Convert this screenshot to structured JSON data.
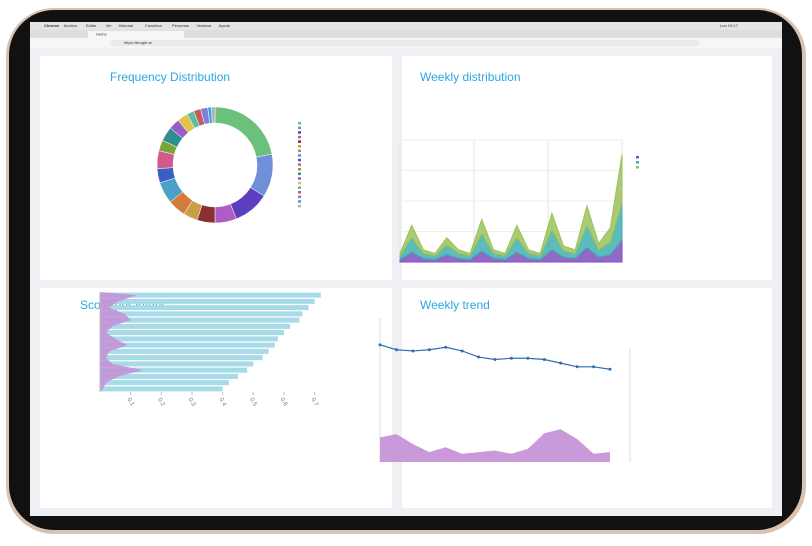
{
  "browser": {
    "menu": [
      "Chrome",
      "Archivo",
      "Editar",
      "Ver",
      "Historial",
      "Favoritos",
      "Personas",
      "Ventana",
      "Ayuda"
    ],
    "clock": "Lun 19:17",
    "tab": "Home",
    "url": "https://brught.ai"
  },
  "chart_data": [
    {
      "type": "pie",
      "title": "Frequency Distribution",
      "values": [
        22,
        12,
        10,
        6,
        5,
        4,
        5,
        6,
        4,
        5,
        3,
        4,
        3,
        3,
        2,
        2,
        2,
        1,
        1
      ],
      "colors": [
        "#6cc17a",
        "#6f8fd8",
        "#5b3fbf",
        "#b05cc7",
        "#8b2f2f",
        "#c9a04a",
        "#d47a3a",
        "#4aa0c8",
        "#3b5fc0",
        "#d05b8c",
        "#7aa33a",
        "#2f8f8f",
        "#9a5cc7",
        "#e0c34a",
        "#5bbf9f",
        "#c75b5b",
        "#7f7fd8",
        "#3fa0e0",
        "#b0b0b0"
      ]
    },
    {
      "type": "area",
      "title": "Weekly distribution",
      "ylim": [
        0,
        100
      ],
      "series": [
        {
          "color": "#7f4fbf",
          "values": [
            2,
            8,
            3,
            2,
            6,
            3,
            2,
            9,
            3,
            2,
            8,
            3,
            2,
            10,
            4,
            3,
            12,
            4,
            6,
            18
          ]
        },
        {
          "color": "#3fb0b0",
          "values": [
            3,
            12,
            4,
            3,
            8,
            4,
            3,
            14,
            4,
            3,
            12,
            4,
            3,
            16,
            5,
            4,
            18,
            6,
            10,
            30
          ]
        },
        {
          "color": "#9bc25a",
          "values": [
            2,
            10,
            3,
            2,
            6,
            3,
            2,
            12,
            3,
            2,
            10,
            3,
            2,
            14,
            4,
            3,
            16,
            5,
            12,
            40
          ]
        }
      ]
    },
    {
      "type": "bar",
      "title": "Score per intent",
      "xlim": [
        0,
        0.75
      ],
      "xticks": [
        0.1,
        0.2,
        0.3,
        0.4,
        0.5,
        0.6,
        0.7
      ],
      "series": [
        {
          "color": "#a8dbe8",
          "values": [
            0.72,
            0.7,
            0.68,
            0.66,
            0.65,
            0.62,
            0.6,
            0.58,
            0.57,
            0.55,
            0.53,
            0.5,
            0.48,
            0.45,
            0.42,
            0.4
          ]
        },
        {
          "color": "#c38ed6",
          "values": [
            0.12,
            0.06,
            0.03,
            0.08,
            0.1,
            0.04,
            0.02,
            0.05,
            0.09,
            0.03,
            0.02,
            0.04,
            0.14,
            0.06,
            0.02,
            0.01
          ]
        }
      ]
    },
    {
      "type": "line",
      "title": "Weekly trend",
      "ylim": [
        0,
        100
      ],
      "y2lim": [
        0,
        100
      ],
      "series": [
        {
          "color": "#2f6fb0",
          "values": [
            78,
            74,
            73,
            74,
            76,
            73,
            68,
            66,
            67,
            67,
            66,
            63,
            60,
            60,
            58
          ]
        },
        {
          "color": "#c38ed6",
          "axis": "y2",
          "values": [
            30,
            34,
            22,
            12,
            18,
            10,
            12,
            14,
            10,
            16,
            35,
            40,
            28,
            10,
            12
          ]
        }
      ]
    }
  ]
}
